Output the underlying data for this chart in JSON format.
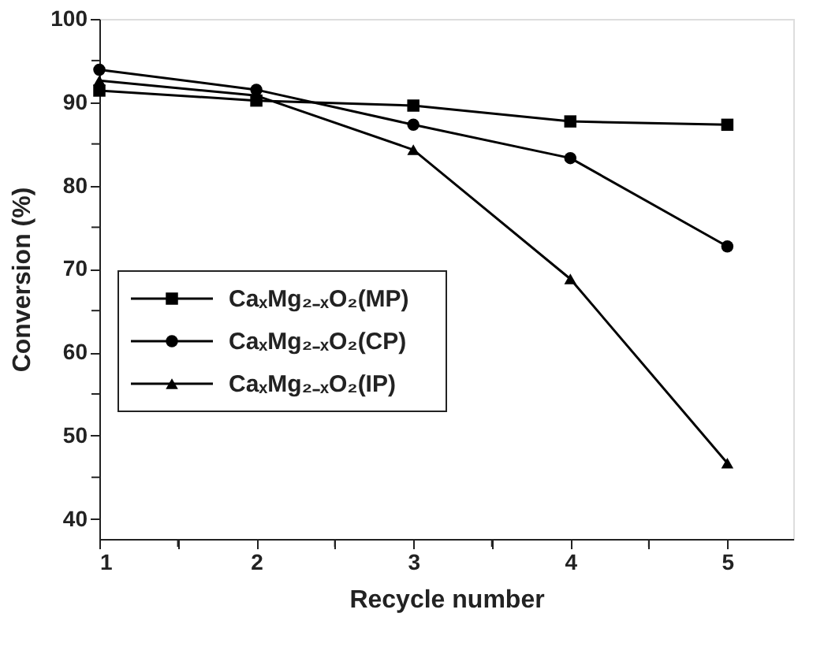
{
  "chart_data": {
    "type": "line",
    "xlabel": "Recycle number",
    "ylabel": "Conversion (%)",
    "x": [
      1,
      2,
      3,
      4,
      5
    ],
    "series": [
      {
        "name": "CaₓMg₂₋ₓO₂(MP)",
        "color": "#000000",
        "marker": "square",
        "values": [
          91.4,
          90.2,
          89.6,
          87.7,
          87.3
        ]
      },
      {
        "name": "CaₓMg₂₋ₓO₂(CP)",
        "color": "#000000",
        "marker": "circle",
        "values": [
          93.9,
          91.5,
          87.3,
          83.3,
          72.7
        ]
      },
      {
        "name": "CaₓMg₂₋ₓO₂(IP)",
        "color": "#000000",
        "marker": "triangle",
        "values": [
          92.6,
          90.8,
          84.3,
          68.8,
          46.7
        ]
      }
    ],
    "xlim": [
      1,
      5.42
    ],
    "ylim": [
      37.6,
      100
    ],
    "xticks": [
      1,
      {
        "value": 1.5,
        "label": null
      },
      2,
      {
        "value": 2.5,
        "label": null
      },
      3,
      {
        "value": 3.5,
        "label": null
      },
      4,
      {
        "value": 4.5,
        "label": null
      },
      5
    ],
    "yticks": [
      40,
      {
        "value": 45,
        "label": null
      },
      50,
      {
        "value": 55,
        "label": null
      },
      60,
      {
        "value": 65,
        "label": null
      },
      70,
      {
        "value": 75,
        "label": null
      },
      80,
      {
        "value": 85,
        "label": null
      },
      90,
      {
        "value": 95,
        "label": null
      },
      100
    ],
    "grid": false,
    "legend": "left",
    "line_style": "solid"
  }
}
